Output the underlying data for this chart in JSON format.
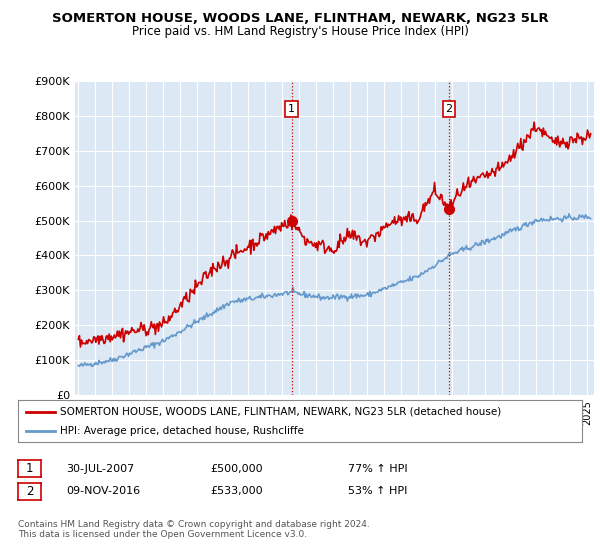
{
  "title": "SOMERTON HOUSE, WOODS LANE, FLINTHAM, NEWARK, NG23 5LR",
  "subtitle": "Price paid vs. HM Land Registry's House Price Index (HPI)",
  "ylim": [
    0,
    900000
  ],
  "xlim_start": 1994.8,
  "xlim_end": 2025.4,
  "purchase1_x": 2007.58,
  "purchase1_y": 500000,
  "purchase1_label": "1",
  "purchase2_x": 2016.86,
  "purchase2_y": 533000,
  "purchase2_label": "2",
  "line_house_color": "#cc0000",
  "line_hpi_color": "#6699cc",
  "legend_house": "SOMERTON HOUSE, WOODS LANE, FLINTHAM, NEWARK, NG23 5LR (detached house)",
  "legend_hpi": "HPI: Average price, detached house, Rushcliffe",
  "table_row1": [
    "1",
    "30-JUL-2007",
    "£500,000",
    "77% ↑ HPI"
  ],
  "table_row2": [
    "2",
    "09-NOV-2016",
    "£533,000",
    "53% ↑ HPI"
  ],
  "footnote": "Contains HM Land Registry data © Crown copyright and database right 2024.\nThis data is licensed under the Open Government Licence v3.0.",
  "plot_bg_color": "#dce9f5",
  "grid_color": "#ffffff"
}
